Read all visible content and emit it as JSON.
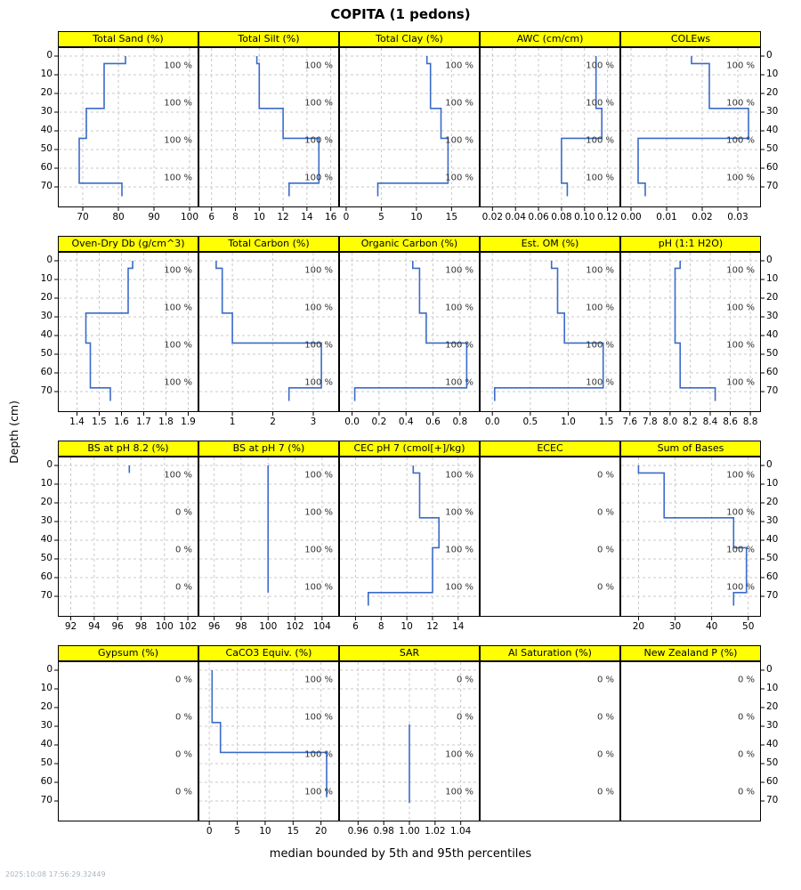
{
  "title": "COPITA (1 pedons)",
  "y_axis_label": "Depth (cm)",
  "caption": "median bounded by 5th and 95th percentiles",
  "timestamp": "2025:10:08 17:56:29.32449",
  "colors": {
    "line": "#3a6bc8",
    "header_bg": "#ffff00",
    "grid": "#c9c9c9",
    "border": "#000000",
    "annotation": "#333333"
  },
  "depth_ticks": [
    0,
    10,
    20,
    30,
    40,
    50,
    60,
    70
  ],
  "annotation_depths": [
    5,
    25,
    45,
    65
  ],
  "chart_data": {
    "type": "line",
    "title": "COPITA (1 pedons)",
    "ylabel": "Depth (cm)",
    "note": "median soil property step-profiles by depth (cm); segments are [top_cm, bottom_cm, value]; annotations are contributing fraction labels at depths 5, 25, 45, 65 cm",
    "horizon_depths_cm": [
      0,
      4,
      28,
      44,
      68,
      75
    ],
    "panels": [
      {
        "name": "Total Sand (%)",
        "row": 0,
        "col": 0,
        "xlim": [
          64,
          101.5
        ],
        "tick_values": [
          70,
          80,
          90,
          100
        ],
        "tick_labels": [
          "70",
          "80",
          "90",
          "100"
        ],
        "annotations": [
          "100 %",
          "100 %",
          "100 %",
          "100 %"
        ],
        "segments": [
          [
            0,
            4,
            82
          ],
          [
            4,
            28,
            76
          ],
          [
            28,
            44,
            71
          ],
          [
            44,
            68,
            69
          ],
          [
            68,
            75,
            81
          ]
        ]
      },
      {
        "name": "Total Silt (%)",
        "row": 0,
        "col": 1,
        "xlim": [
          5.2,
          16.4
        ],
        "tick_values": [
          6,
          8,
          10,
          12,
          14,
          16
        ],
        "tick_labels": [
          "6",
          "8",
          "10",
          "12",
          "14",
          "16"
        ],
        "annotations": [
          "100 %",
          "100 %",
          "100 %",
          "100 %"
        ],
        "segments": [
          [
            0,
            4,
            9.8
          ],
          [
            4,
            28,
            10
          ],
          [
            28,
            44,
            12
          ],
          [
            44,
            68,
            15
          ],
          [
            68,
            75,
            12.5
          ]
        ]
      },
      {
        "name": "Total Clay (%)",
        "row": 0,
        "col": 2,
        "xlim": [
          -0.5,
          18.5
        ],
        "tick_values": [
          0,
          5,
          10,
          15
        ],
        "tick_labels": [
          "0",
          "5",
          "10",
          "15"
        ],
        "annotations": [
          "100 %",
          "100 %",
          "100 %",
          "100 %"
        ],
        "segments": [
          [
            0,
            4,
            11.5
          ],
          [
            4,
            28,
            12
          ],
          [
            28,
            44,
            13.5
          ],
          [
            44,
            68,
            14.5
          ],
          [
            68,
            75,
            4.5
          ]
        ]
      },
      {
        "name": "AWC (cm/cm)",
        "row": 0,
        "col": 3,
        "xlim": [
          0.012,
          0.128
        ],
        "tick_values": [
          0.02,
          0.04,
          0.06,
          0.08,
          0.1,
          0.12
        ],
        "tick_labels": [
          "0.02",
          "0.04",
          "0.06",
          "0.08",
          "0.10",
          "0.12"
        ],
        "annotations": [
          "100 %",
          "100 %",
          "100 %",
          "100 %"
        ],
        "segments": [
          [
            0,
            4,
            0.11
          ],
          [
            4,
            28,
            0.11
          ],
          [
            28,
            44,
            0.115
          ],
          [
            44,
            68,
            0.08
          ],
          [
            68,
            75,
            0.085
          ]
        ]
      },
      {
        "name": "COLEws",
        "row": 0,
        "col": 4,
        "xlim": [
          -0.002,
          0.0355
        ],
        "tick_values": [
          0,
          0.01,
          0.02,
          0.03
        ],
        "tick_labels": [
          "0.00",
          "0.01",
          "0.02",
          "0.03"
        ],
        "annotations": [
          "100 %",
          "100 %",
          "100 %",
          "100 %"
        ],
        "segments": [
          [
            0,
            4,
            0.017
          ],
          [
            4,
            28,
            0.022
          ],
          [
            28,
            44,
            0.033
          ],
          [
            44,
            68,
            0.002
          ],
          [
            68,
            75,
            0.004
          ]
        ]
      },
      {
        "name": "Oven-Dry Db (g/cm^3)",
        "row": 1,
        "col": 0,
        "xlim": [
          1.33,
          1.93
        ],
        "tick_values": [
          1.4,
          1.5,
          1.6,
          1.7,
          1.8,
          1.9
        ],
        "tick_labels": [
          "1.4",
          "1.5",
          "1.6",
          "1.7",
          "1.8",
          "1.9"
        ],
        "annotations": [
          "100 %",
          "100 %",
          "100 %",
          "100 %"
        ],
        "segments": [
          [
            0,
            4,
            1.65
          ],
          [
            4,
            28,
            1.63
          ],
          [
            28,
            44,
            1.44
          ],
          [
            44,
            68,
            1.46
          ],
          [
            68,
            75,
            1.55
          ]
        ]
      },
      {
        "name": "Total Carbon (%)",
        "row": 1,
        "col": 1,
        "xlim": [
          0.25,
          3.55
        ],
        "tick_values": [
          1,
          2,
          3
        ],
        "tick_labels": [
          "1",
          "2",
          "3"
        ],
        "annotations": [
          "100 %",
          "100 %",
          "100 %",
          "100 %"
        ],
        "segments": [
          [
            0,
            4,
            0.6
          ],
          [
            4,
            28,
            0.75
          ],
          [
            28,
            44,
            1.0
          ],
          [
            44,
            68,
            3.2
          ],
          [
            68,
            75,
            2.4
          ]
        ]
      },
      {
        "name": "Organic Carbon (%)",
        "row": 1,
        "col": 2,
        "xlim": [
          -0.07,
          0.92
        ],
        "tick_values": [
          0,
          0.2,
          0.4,
          0.6,
          0.8
        ],
        "tick_labels": [
          "0.0",
          "0.2",
          "0.4",
          "0.6",
          "0.8"
        ],
        "annotations": [
          "100 %",
          "100 %",
          "100 %",
          "100 %"
        ],
        "segments": [
          [
            0,
            4,
            0.45
          ],
          [
            4,
            28,
            0.5
          ],
          [
            28,
            44,
            0.55
          ],
          [
            44,
            68,
            0.85
          ],
          [
            68,
            75,
            0.02
          ]
        ]
      },
      {
        "name": "Est. OM (%)",
        "row": 1,
        "col": 3,
        "xlim": [
          -0.12,
          1.64
        ],
        "tick_values": [
          0,
          0.5,
          1,
          1.5
        ],
        "tick_labels": [
          "0.0",
          "0.5",
          "1.0",
          "1.5"
        ],
        "annotations": [
          "100 %",
          "100 %",
          "100 %",
          "100 %"
        ],
        "segments": [
          [
            0,
            4,
            0.78
          ],
          [
            4,
            28,
            0.86
          ],
          [
            28,
            44,
            0.95
          ],
          [
            44,
            68,
            1.46
          ],
          [
            68,
            75,
            0.03
          ]
        ]
      },
      {
        "name": "pH (1:1 H2O)",
        "row": 1,
        "col": 4,
        "xlim": [
          7.54,
          8.87
        ],
        "tick_values": [
          7.6,
          7.8,
          8.0,
          8.2,
          8.4,
          8.6,
          8.8
        ],
        "tick_labels": [
          "7.6",
          "7.8",
          "8.0",
          "8.2",
          "8.4",
          "8.6",
          "8.8"
        ],
        "annotations": [
          "100 %",
          "100 %",
          "100 %",
          "100 %"
        ],
        "segments": [
          [
            0,
            4,
            8.1
          ],
          [
            4,
            28,
            8.05
          ],
          [
            28,
            44,
            8.05
          ],
          [
            44,
            68,
            8.1
          ],
          [
            68,
            75,
            8.45
          ]
        ]
      },
      {
        "name": "BS at pH 8.2 (%)",
        "row": 2,
        "col": 0,
        "xlim": [
          91.2,
          102.6
        ],
        "tick_values": [
          92,
          94,
          96,
          98,
          100,
          102
        ],
        "tick_labels": [
          "92",
          "94",
          "96",
          "98",
          "100",
          "102"
        ],
        "annotations": [
          "100 %",
          "0 %",
          "0 %",
          "0 %"
        ],
        "segments": [
          [
            0,
            4,
            97
          ]
        ]
      },
      {
        "name": "BS at pH 7 (%)",
        "row": 2,
        "col": 1,
        "xlim": [
          95.1,
          105.0
        ],
        "tick_values": [
          96,
          98,
          100,
          102,
          104
        ],
        "tick_labels": [
          "96",
          "98",
          "100",
          "102",
          "104"
        ],
        "annotations": [
          "100 %",
          "100 %",
          "100 %",
          "100 %"
        ],
        "segments": [
          [
            0,
            68,
            100
          ]
        ]
      },
      {
        "name": "CEC pH 7 (cmol[+]/kg)",
        "row": 2,
        "col": 2,
        "xlim": [
          5.0,
          15.4
        ],
        "tick_values": [
          6,
          8,
          10,
          12,
          14
        ],
        "tick_labels": [
          "6",
          "8",
          "10",
          "12",
          "14"
        ],
        "annotations": [
          "100 %",
          "100 %",
          "100 %",
          "100 %"
        ],
        "segments": [
          [
            0,
            4,
            10.5
          ],
          [
            4,
            28,
            11
          ],
          [
            28,
            44,
            12.5
          ],
          [
            44,
            68,
            12
          ],
          [
            68,
            75,
            7
          ]
        ]
      },
      {
        "name": "ECEC",
        "row": 2,
        "col": 3,
        "xlim": [
          0,
          1
        ],
        "tick_values": [],
        "tick_labels": [],
        "annotations": [
          "0 %",
          "0 %",
          "0 %",
          "0 %"
        ],
        "segments": []
      },
      {
        "name": "Sum of Bases",
        "row": 2,
        "col": 4,
        "xlim": [
          16,
          52.5
        ],
        "tick_values": [
          20,
          30,
          40,
          50
        ],
        "tick_labels": [
          "20",
          "30",
          "40",
          "50"
        ],
        "annotations": [
          "100 %",
          "100 %",
          "100 %",
          "100 %"
        ],
        "segments": [
          [
            0,
            4,
            20
          ],
          [
            4,
            28,
            27
          ],
          [
            28,
            44,
            46
          ],
          [
            44,
            68,
            49.5
          ],
          [
            68,
            75,
            46
          ]
        ]
      },
      {
        "name": "Gypsum (%)",
        "row": 3,
        "col": 0,
        "xlim": [
          0,
          1
        ],
        "tick_values": [],
        "tick_labels": [],
        "annotations": [
          "0 %",
          "0 %",
          "0 %",
          "0 %"
        ],
        "segments": []
      },
      {
        "name": "CaCO3 Equiv. (%)",
        "row": 3,
        "col": 1,
        "xlim": [
          -1.3,
          22.6
        ],
        "tick_values": [
          0,
          5,
          10,
          15,
          20
        ],
        "tick_labels": [
          "0",
          "5",
          "10",
          "15",
          "20"
        ],
        "annotations": [
          "100 %",
          "100 %",
          "100 %",
          "100 %"
        ],
        "segments": [
          [
            0,
            4,
            0.5
          ],
          [
            4,
            28,
            0.5
          ],
          [
            28,
            44,
            2
          ],
          [
            44,
            68,
            21
          ]
        ]
      },
      {
        "name": "SAR",
        "row": 3,
        "col": 2,
        "xlim": [
          0.948,
          1.052
        ],
        "tick_values": [
          0.96,
          0.98,
          1.0,
          1.02,
          1.04
        ],
        "tick_labels": [
          "0.96",
          "0.98",
          "1.00",
          "1.02",
          "1.04"
        ],
        "annotations": [
          "0 %",
          "0 %",
          "100 %",
          "100 %"
        ],
        "segments": [
          [
            29,
            71,
            1.0
          ]
        ]
      },
      {
        "name": "Al Saturation (%)",
        "row": 3,
        "col": 3,
        "xlim": [
          0,
          1
        ],
        "tick_values": [],
        "tick_labels": [],
        "annotations": [
          "0 %",
          "0 %",
          "0 %",
          "0 %"
        ],
        "segments": []
      },
      {
        "name": "New Zealand P (%)",
        "row": 3,
        "col": 4,
        "xlim": [
          0,
          1
        ],
        "tick_values": [],
        "tick_labels": [],
        "annotations": [
          "0 %",
          "0 %",
          "0 %",
          "0 %"
        ],
        "segments": []
      }
    ]
  }
}
